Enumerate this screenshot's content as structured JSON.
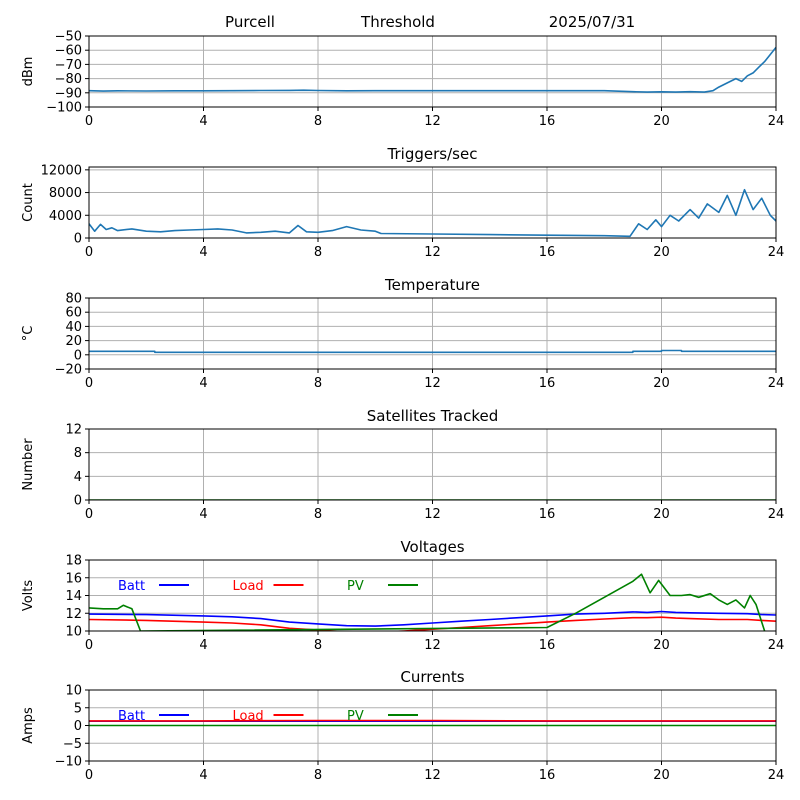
{
  "header": {
    "station": "Purcell",
    "mode": "Threshold",
    "date": "2025/07/31"
  },
  "colors": {
    "series": "#1f77b4",
    "batt": "#0000ff",
    "load": "#ff0000",
    "pv": "#008000",
    "grid": "#b0b0b0",
    "axis": "#000000"
  },
  "chart_data": [
    {
      "type": "line",
      "title": "",
      "xlabel": "",
      "ylabel": "dBm",
      "xlim": [
        0,
        24
      ],
      "ylim": [
        -100,
        -50
      ],
      "xticks": [
        0,
        4,
        8,
        12,
        16,
        20,
        24
      ],
      "yticks": [
        -100,
        -90,
        -80,
        -70,
        -60,
        -50
      ],
      "grid": true,
      "series": [
        {
          "color": "#1f77b4",
          "x": [
            0,
            0.5,
            1,
            2,
            3,
            4,
            5,
            6,
            7,
            7.5,
            8,
            9,
            10,
            11,
            12,
            14,
            16,
            18,
            19,
            19.5,
            20,
            20.5,
            21,
            21.5,
            21.8,
            22,
            22.3,
            22.6,
            22.8,
            23,
            23.2,
            23.4,
            23.6,
            23.8,
            24
          ],
          "y": [
            -88.5,
            -88.8,
            -88.6,
            -88.7,
            -88.6,
            -88.6,
            -88.5,
            -88.4,
            -88.3,
            -88.2,
            -88.4,
            -88.6,
            -88.5,
            -88.5,
            -88.5,
            -88.5,
            -88.5,
            -88.5,
            -89.2,
            -89.5,
            -89.3,
            -89.5,
            -89.2,
            -89.5,
            -88.5,
            -86,
            -83,
            -80,
            -82,
            -78,
            -76,
            -72,
            -68,
            -63,
            -58
          ]
        }
      ]
    },
    {
      "type": "line",
      "title": "Triggers/sec",
      "xlabel": "",
      "ylabel": "Count",
      "xlim": [
        0,
        24
      ],
      "ylim": [
        0,
        12500
      ],
      "xticks": [
        0,
        4,
        8,
        12,
        16,
        20,
        24
      ],
      "yticks": [
        0,
        4000,
        8000,
        12000
      ],
      "grid": true,
      "series": [
        {
          "color": "#1f77b4",
          "x": [
            0,
            0.2,
            0.4,
            0.6,
            0.8,
            1,
            1.5,
            2,
            2.5,
            3,
            3.5,
            4,
            4.5,
            5,
            5.5,
            6,
            6.5,
            7,
            7.3,
            7.6,
            8,
            8.5,
            9,
            9.5,
            10,
            10.2,
            12,
            14,
            16,
            18,
            18.9,
            19.2,
            19.5,
            19.8,
            20,
            20.3,
            20.6,
            21,
            21.3,
            21.6,
            22,
            22.3,
            22.6,
            22.9,
            23.2,
            23.5,
            23.8,
            24
          ],
          "y": [
            2500,
            1200,
            2400,
            1500,
            1800,
            1300,
            1600,
            1200,
            1100,
            1300,
            1400,
            1500,
            1600,
            1400,
            900,
            1000,
            1200,
            900,
            2200,
            1100,
            1000,
            1300,
            2000,
            1400,
            1200,
            800,
            700,
            600,
            500,
            400,
            300,
            2500,
            1500,
            3200,
            2000,
            4000,
            3000,
            5000,
            3500,
            6000,
            4500,
            7500,
            4000,
            8500,
            5000,
            7000,
            4000,
            3000
          ]
        }
      ]
    },
    {
      "type": "line",
      "title": "Temperature",
      "xlabel": "",
      "ylabel": "°C",
      "xlim": [
        0,
        24
      ],
      "ylim": [
        -20,
        80
      ],
      "xticks": [
        0,
        4,
        8,
        12,
        16,
        20,
        24
      ],
      "yticks": [
        -20,
        0,
        20,
        40,
        60,
        80
      ],
      "grid": true,
      "series": [
        {
          "color": "#1f77b4",
          "x": [
            0,
            2.3,
            2.3,
            19,
            19,
            20,
            20,
            20.7,
            20.7,
            24
          ],
          "y": [
            5,
            5,
            3.5,
            3.5,
            5,
            5,
            6,
            6,
            5,
            5
          ]
        }
      ]
    },
    {
      "type": "line",
      "title": "Satellites Tracked",
      "xlabel": "",
      "ylabel": "Number",
      "xlim": [
        0,
        24
      ],
      "ylim": [
        0,
        12
      ],
      "xticks": [
        0,
        4,
        8,
        12,
        16,
        20,
        24
      ],
      "yticks": [
        0,
        4,
        8,
        12
      ],
      "grid": true,
      "series": [
        {
          "color": "#008000",
          "x": [
            0,
            24
          ],
          "y": [
            0,
            0
          ]
        }
      ]
    },
    {
      "type": "line",
      "title": "Voltages",
      "xlabel": "",
      "ylabel": "Volts",
      "xlim": [
        0,
        24
      ],
      "ylim": [
        10,
        18
      ],
      "xticks": [
        0,
        4,
        8,
        12,
        16,
        20,
        24
      ],
      "yticks": [
        10,
        12,
        14,
        16,
        18
      ],
      "grid": true,
      "legend": "top-left",
      "series": [
        {
          "name": "Batt",
          "color": "#0000ff",
          "x": [
            0,
            2,
            4,
            5,
            6,
            7,
            8,
            9,
            10,
            11,
            12,
            13,
            14,
            15,
            16,
            17,
            18,
            19,
            19.5,
            20,
            20.5,
            21,
            22,
            23,
            23.5,
            24
          ],
          "y": [
            11.9,
            11.85,
            11.7,
            11.6,
            11.4,
            11.0,
            10.8,
            10.6,
            10.55,
            10.7,
            10.9,
            11.1,
            11.3,
            11.5,
            11.7,
            11.9,
            12.0,
            12.15,
            12.1,
            12.2,
            12.1,
            12.05,
            12.0,
            11.95,
            11.85,
            11.8
          ]
        },
        {
          "name": "Load",
          "color": "#ff0000",
          "x": [
            0,
            2,
            4,
            5,
            6,
            7,
            8,
            9,
            10,
            11,
            12,
            13,
            14,
            15,
            16,
            17,
            18,
            19,
            19.5,
            20,
            20.5,
            21,
            22,
            23,
            23.5,
            24
          ],
          "y": [
            11.3,
            11.2,
            11.0,
            10.9,
            10.7,
            10.3,
            10.1,
            9.9,
            9.85,
            10.0,
            10.2,
            10.4,
            10.6,
            10.8,
            11.0,
            11.2,
            11.35,
            11.5,
            11.5,
            11.55,
            11.45,
            11.4,
            11.3,
            11.3,
            11.2,
            11.1
          ]
        },
        {
          "name": "PV",
          "color": "#008000",
          "x": [
            0,
            0.5,
            1,
            1.2,
            1.5,
            1.8,
            16,
            17,
            18,
            19,
            19.3,
            19.6,
            19.9,
            20.3,
            20.7,
            21,
            21.3,
            21.7,
            22,
            22.3,
            22.6,
            22.9,
            23.1,
            23.3,
            23.6
          ],
          "y": [
            12.6,
            12.5,
            12.5,
            12.9,
            12.5,
            10.0,
            10.4,
            12.0,
            13.8,
            15.6,
            16.4,
            14.3,
            15.7,
            14.0,
            14.0,
            14.1,
            13.8,
            14.2,
            13.5,
            13.0,
            13.5,
            12.6,
            14.0,
            13.0,
            10.0
          ]
        }
      ]
    },
    {
      "type": "line",
      "title": "Currents",
      "xlabel": "",
      "ylabel": "Amps",
      "xlim": [
        0,
        24
      ],
      "ylim": [
        -10,
        10
      ],
      "xticks": [
        0,
        4,
        8,
        12,
        16,
        20,
        24
      ],
      "yticks": [
        -10,
        -5,
        0,
        5,
        10
      ],
      "grid": true,
      "legend": "top-left",
      "series": [
        {
          "name": "Batt",
          "color": "#0000ff",
          "x": [
            0,
            24
          ],
          "y": [
            1.2,
            1.2
          ]
        },
        {
          "name": "Load",
          "color": "#ff0000",
          "x": [
            0,
            4,
            8,
            12,
            16,
            20,
            24
          ],
          "y": [
            1.3,
            1.3,
            1.4,
            1.4,
            1.3,
            1.3,
            1.3
          ]
        },
        {
          "name": "PV",
          "color": "#008000",
          "x": [
            0,
            24
          ],
          "y": [
            0,
            0
          ]
        }
      ]
    }
  ]
}
